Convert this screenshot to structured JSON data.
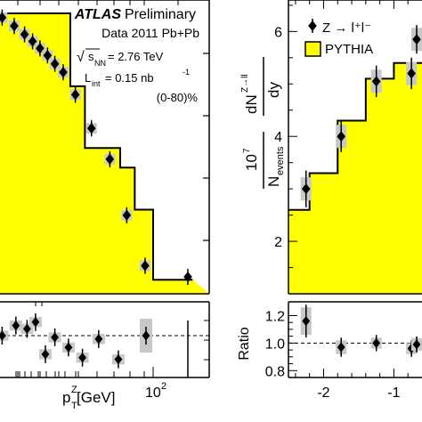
{
  "chart_data": [
    {
      "type": "line",
      "panel": "left",
      "x_scale": "log",
      "xlabel": {
        "main": "p",
        "sub": "T",
        "sup": "Z",
        "unit": " [GeV]"
      },
      "x_tick_labels": [
        {
          "base": "10",
          "exp": "2",
          "value": 100
        }
      ],
      "legend_text": {
        "atlas": "ATLAS",
        "preliminary": "Preliminary",
        "dataset": "Data 2011 Pb+Pb",
        "energy": {
          "root": "√",
          "sub": "NN",
          "s": "s",
          "value": " = 2.76 TeV"
        },
        "lumi": {
          "L": "L",
          "sub": "int",
          "value": " = 0.15 nb",
          "sup": "-1"
        },
        "centrality": "(0-80)%"
      },
      "colors": {
        "mc_fill": "#ffff00",
        "outline": "#000000",
        "error_box": "#c8c8c8"
      },
      "pythia_steps": [
        {
          "x0": 0.5,
          "x1": 10,
          "y": 1.0
        },
        {
          "x0": 10,
          "x1": 15,
          "y": 0.74
        },
        {
          "x0": 15,
          "x1": 40,
          "y": 0.52
        },
        {
          "x0": 40,
          "x1": 60,
          "y": 0.45
        },
        {
          "x0": 60,
          "x1": 100,
          "y": 0.3
        },
        {
          "x0": 100,
          "x1": 300,
          "y": 0.05
        }
      ],
      "data_points": [
        {
          "x": 1.5,
          "y": 0.985
        },
        {
          "x": 2.1,
          "y": 0.955
        },
        {
          "x": 2.8,
          "y": 0.925
        },
        {
          "x": 3.5,
          "y": 0.9
        },
        {
          "x": 4.3,
          "y": 0.875
        },
        {
          "x": 5.3,
          "y": 0.85
        },
        {
          "x": 6.5,
          "y": 0.82
        },
        {
          "x": 8.2,
          "y": 0.79
        },
        {
          "x": 11.5,
          "y": 0.71
        },
        {
          "x": 18,
          "y": 0.59
        },
        {
          "x": 30,
          "y": 0.48
        },
        {
          "x": 48,
          "y": 0.28
        },
        {
          "x": 80,
          "y": 0.1
        }
      ],
      "ratio_points": [
        {
          "x": 1.5,
          "y": 1.0,
          "err": 0.06
        },
        {
          "x": 2.2,
          "y": 1.06,
          "err": 0.06
        },
        {
          "x": 3.0,
          "y": 1.04,
          "err": 0.06
        },
        {
          "x": 3.8,
          "y": 1.08,
          "err": 0.06
        },
        {
          "x": 5.0,
          "y": 0.89,
          "err": 0.06
        },
        {
          "x": 6.5,
          "y": 0.99,
          "err": 0.06
        },
        {
          "x": 9.5,
          "y": 0.93,
          "err": 0.06
        },
        {
          "x": 14,
          "y": 0.87,
          "err": 0.06
        },
        {
          "x": 22,
          "y": 0.98,
          "err": 0.06
        },
        {
          "x": 38,
          "y": 0.86,
          "err": 0.06
        },
        {
          "x": 82,
          "y": 1.0,
          "err": 0.2
        }
      ]
    },
    {
      "type": "line",
      "panel": "right",
      "ylabel_top": {
        "factor": "10",
        "factor_exp": "7",
        "denom_main": "N",
        "denom_sub": "events",
        "num_main": "dN",
        "num_sup": "Z→ll",
        "dy": "dy"
      },
      "ylabel_ratio": "Ratio",
      "y_ticks_top": [
        "2",
        "4",
        "6"
      ],
      "y_ticks_ratio": [
        "1.2",
        "1.0",
        "0.8"
      ],
      "x_ticks": [
        "-2",
        "-1"
      ],
      "ylim_top": [
        1.0,
        6.6
      ],
      "ylim_ratio": [
        0.75,
        1.3
      ],
      "xlim": [
        -2.5,
        -0.6
      ],
      "legend": {
        "data": "Z → l⁺l⁻",
        "mc": "PYTHIA"
      },
      "colors": {
        "mc_fill": "#ffff00",
        "outline": "#000000",
        "error_box": "#c8c8c8"
      },
      "pythia_steps": [
        {
          "x0": -2.5,
          "x1": -2.2,
          "y": 2.6
        },
        {
          "x0": -2.2,
          "x1": -1.8,
          "y": 3.3
        },
        {
          "x0": -1.8,
          "x1": -1.4,
          "y": 4.3
        },
        {
          "x0": -1.4,
          "x1": -1.0,
          "y": 5.1
        },
        {
          "x0": -1.0,
          "x1": -0.6,
          "y": 5.4
        }
      ],
      "data_points": [
        {
          "x": -2.25,
          "y": 3.0,
          "err": 0.35
        },
        {
          "x": -1.75,
          "y": 4.0,
          "err": 0.3
        },
        {
          "x": -1.25,
          "y": 5.05,
          "err": 0.3
        },
        {
          "x": -0.75,
          "y": 5.2,
          "err": 0.3
        }
      ],
      "ratio_points": [
        {
          "x": -2.25,
          "y": 1.16,
          "err": 0.1
        },
        {
          "x": -1.75,
          "y": 0.97,
          "err": 0.05
        },
        {
          "x": -1.25,
          "y": 1.0,
          "err": 0.04
        },
        {
          "x": -0.75,
          "y": 0.96,
          "err": 0.04
        }
      ],
      "partial_point": {
        "y": 5.85,
        "ratio": 0.99
      }
    }
  ]
}
